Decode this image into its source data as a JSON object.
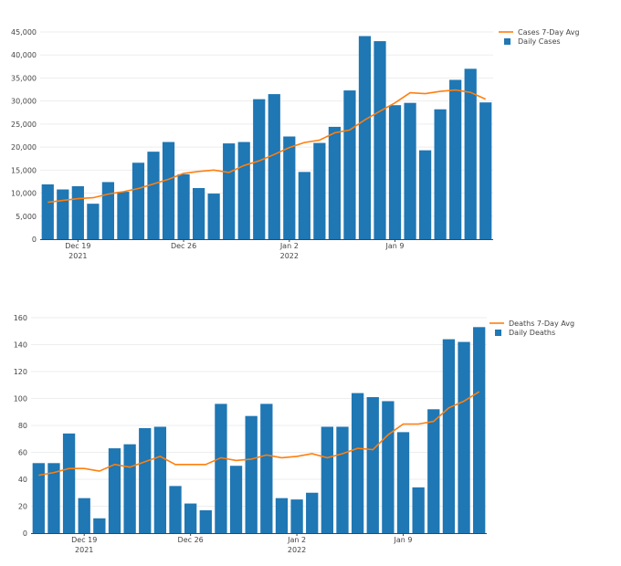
{
  "chart_data": [
    {
      "type": "bar",
      "title": "",
      "xlabel": "",
      "ylabel": "",
      "ylim": [
        0,
        45000
      ],
      "y_ticks": [
        "0",
        "5,000",
        "10,000",
        "15,000",
        "20,000",
        "25,000",
        "30,000",
        "35,000",
        "40,000",
        "45,000"
      ],
      "x_ticks": [
        {
          "label": "Dec 19",
          "sub": "2021",
          "date": "2021-12-19"
        },
        {
          "label": "Dec 26",
          "sub": "",
          "date": "2021-12-26"
        },
        {
          "label": "Jan 2",
          "sub": "2022",
          "date": "2022-01-02"
        },
        {
          "label": "Jan 9",
          "sub": "",
          "date": "2022-01-09"
        }
      ],
      "x": [
        "2021-12-17",
        "2021-12-18",
        "2021-12-19",
        "2021-12-20",
        "2021-12-21",
        "2021-12-22",
        "2021-12-23",
        "2021-12-24",
        "2021-12-25",
        "2021-12-26",
        "2021-12-27",
        "2021-12-28",
        "2021-12-29",
        "2021-12-30",
        "2021-12-31",
        "2022-01-01",
        "2022-01-02",
        "2022-01-03",
        "2022-01-04",
        "2022-01-05",
        "2022-01-06",
        "2022-01-07",
        "2022-01-08",
        "2022-01-09",
        "2022-01-10",
        "2022-01-11",
        "2022-01-12",
        "2022-01-13",
        "2022-01-14",
        "2022-01-15"
      ],
      "grid": true,
      "legend_position": "top-right",
      "series": [
        {
          "name": "Daily Cases",
          "kind": "bar",
          "color": "#1f77b4",
          "values": [
            11900,
            10800,
            11500,
            7700,
            12400,
            10300,
            16600,
            19000,
            21100,
            14100,
            11100,
            9900,
            20800,
            21100,
            30400,
            31500,
            22300,
            14600,
            20900,
            24400,
            32300,
            44100,
            43000,
            29100,
            29600,
            19300,
            28200,
            34600,
            37000,
            29700
          ]
        },
        {
          "name": "Cases 7-Day Avg",
          "kind": "line",
          "color": "#ff7f0e",
          "values": [
            8000,
            8400,
            8800,
            9000,
            9800,
            10300,
            11000,
            12000,
            13000,
            14300,
            14700,
            15000,
            14500,
            16000,
            17000,
            18400,
            19900,
            21000,
            21500,
            23100,
            23700,
            25900,
            27800,
            29600,
            31800,
            31600,
            32100,
            32400,
            31900,
            30400
          ]
        }
      ]
    },
    {
      "type": "bar",
      "title": "",
      "xlabel": "",
      "ylabel": "",
      "ylim": [
        0,
        160
      ],
      "y_ticks": [
        "0",
        "20",
        "40",
        "60",
        "80",
        "100",
        "120",
        "140",
        "160"
      ],
      "x_ticks": [
        {
          "label": "Dec 19",
          "sub": "2021",
          "date": "2021-12-19"
        },
        {
          "label": "Dec 26",
          "sub": "",
          "date": "2021-12-26"
        },
        {
          "label": "Jan 2",
          "sub": "2022",
          "date": "2022-01-02"
        },
        {
          "label": "Jan 9",
          "sub": "",
          "date": "2022-01-09"
        }
      ],
      "x": [
        "2021-12-16",
        "2021-12-17",
        "2021-12-18",
        "2021-12-19",
        "2021-12-20",
        "2021-12-21",
        "2021-12-22",
        "2021-12-23",
        "2021-12-24",
        "2021-12-25",
        "2021-12-26",
        "2021-12-27",
        "2021-12-28",
        "2021-12-29",
        "2021-12-30",
        "2021-12-31",
        "2022-01-01",
        "2022-01-02",
        "2022-01-03",
        "2022-01-04",
        "2022-01-05",
        "2022-01-06",
        "2022-01-07",
        "2022-01-08",
        "2022-01-09",
        "2022-01-10",
        "2022-01-11",
        "2022-01-12",
        "2022-01-13",
        "2022-01-14"
      ],
      "grid": true,
      "legend_position": "top-right",
      "series": [
        {
          "name": "Daily Deaths",
          "kind": "bar",
          "color": "#1f77b4",
          "values": [
            52,
            52,
            74,
            26,
            11,
            63,
            66,
            78,
            79,
            35,
            22,
            17,
            96,
            50,
            87,
            96,
            26,
            25,
            30,
            79,
            79,
            104,
            101,
            98,
            75,
            34,
            92,
            144,
            142,
            153
          ]
        },
        {
          "name": "Deaths 7-Day Avg",
          "kind": "line",
          "color": "#ff7f0e",
          "values": [
            43,
            45,
            48,
            48,
            46,
            51,
            49,
            53,
            57,
            51,
            51,
            51,
            56,
            54,
            55,
            58,
            56,
            57,
            59,
            56,
            59,
            63,
            62,
            73,
            81,
            81,
            83,
            93,
            98,
            105
          ]
        }
      ]
    }
  ]
}
